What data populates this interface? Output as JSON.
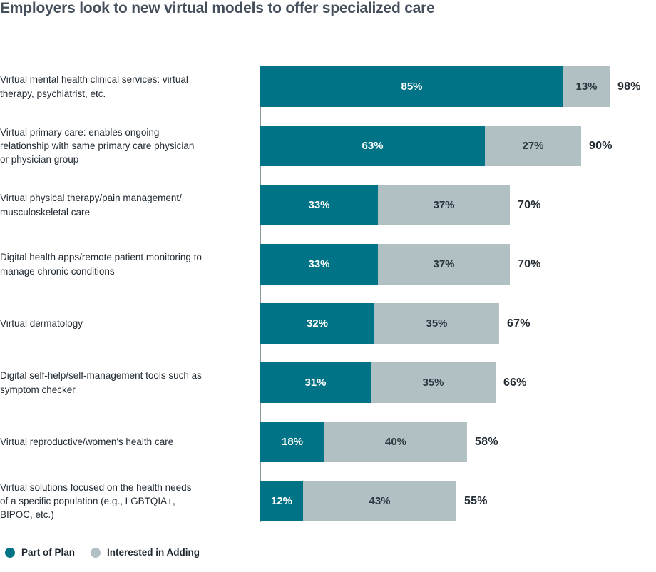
{
  "chart_data": {
    "type": "bar",
    "orientation": "horizontal",
    "stacked": true,
    "title": "Employers look to new virtual models to offer specialized care",
    "categories": [
      "Virtual mental health clinical services: virtual\ntherapy, psychiatrist, etc.",
      "Virtual primary care: enables ongoing\nrelationship with same primary care physician\nor physician group",
      "Virtual physical therapy/pain management/\nmusculoskeletal care",
      "Digital health apps/remote patient monitoring to\nmanage chronic conditions",
      "Virtual dermatology",
      "Digital self-help/self-management tools such as\nsymptom checker",
      "Virtual reproductive/women's health care",
      "Virtual solutions focused on the health needs\nof a specific population (e.g., LGBTQIA+,\nBIPOC, etc.)"
    ],
    "series": [
      {
        "name": "Part of Plan",
        "color": "#007486",
        "label_color": "#ffffff",
        "values": [
          85,
          63,
          33,
          33,
          32,
          31,
          18,
          12
        ],
        "labels": [
          "85%",
          "63%",
          "33%",
          "33%",
          "32%",
          "31%",
          "18%",
          "12%"
        ]
      },
      {
        "name": "Interested in Adding",
        "color": "#b1c0c3",
        "label_color": "#2d3742",
        "values": [
          13,
          27,
          37,
          37,
          35,
          35,
          40,
          43
        ],
        "labels": [
          "13%",
          "27%",
          "37%",
          "37%",
          "35%",
          "35%",
          "40%",
          "43%"
        ]
      }
    ],
    "totals": {
      "values": [
        98,
        90,
        70,
        70,
        67,
        66,
        58,
        55
      ],
      "labels": [
        "98%",
        "90%",
        "70%",
        "70%",
        "67%",
        "66%",
        "58%",
        "55%"
      ]
    },
    "xlim": [
      0,
      100
    ],
    "grid": false,
    "legend_position": "bottom-left",
    "colors": {
      "title": "#454f5b",
      "category_label": "#212a33",
      "total_label": "#242c34",
      "axis_line": "#8f9a9f",
      "background": "#ffffff"
    }
  }
}
